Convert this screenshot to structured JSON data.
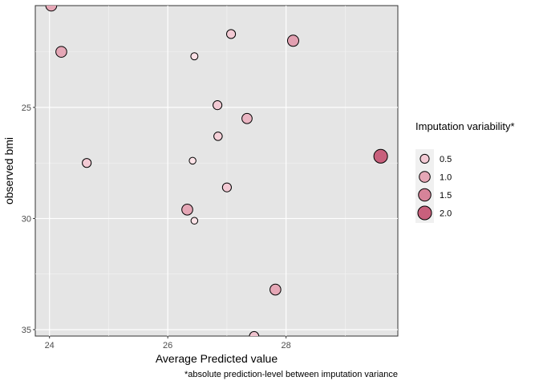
{
  "chart_data": {
    "type": "scatter",
    "title": "",
    "xlabel": "Average Predicted value",
    "ylabel": "observed bmi",
    "caption": "*absolute prediction-level between imputation variance",
    "xlim": [
      23.76,
      29.89
    ],
    "ylim": [
      35.29,
      20.42
    ],
    "y_reversed": true,
    "x_ticks": [
      24,
      26,
      28
    ],
    "x_minor": [
      25,
      27,
      29
    ],
    "y_ticks": [
      25,
      30,
      35
    ],
    "y_minor": [
      22.5,
      27.5,
      32.5
    ],
    "grid": true,
    "legend": {
      "title": "Imputation variability*",
      "placement": "right",
      "entries": [
        {
          "label": "0.5",
          "value": 0.5
        },
        {
          "label": "1.0",
          "value": 1.0
        },
        {
          "label": "1.5",
          "value": 1.5
        },
        {
          "label": "2.0",
          "value": 2.0
        }
      ]
    },
    "points": [
      {
        "x": 24.03,
        "y": 20.42,
        "v": 1.0
      },
      {
        "x": 24.2,
        "y": 22.5,
        "v": 1.0
      },
      {
        "x": 27.07,
        "y": 21.7,
        "v": 0.5
      },
      {
        "x": 26.45,
        "y": 22.7,
        "v": 0.2
      },
      {
        "x": 28.12,
        "y": 22.0,
        "v": 1.1
      },
      {
        "x": 26.84,
        "y": 24.9,
        "v": 0.5
      },
      {
        "x": 27.34,
        "y": 25.5,
        "v": 0.8
      },
      {
        "x": 26.85,
        "y": 26.3,
        "v": 0.4
      },
      {
        "x": 24.63,
        "y": 27.5,
        "v": 0.5
      },
      {
        "x": 26.42,
        "y": 27.4,
        "v": 0.15
      },
      {
        "x": 29.6,
        "y": 27.2,
        "v": 2.0
      },
      {
        "x": 27.0,
        "y": 28.6,
        "v": 0.5
      },
      {
        "x": 26.33,
        "y": 29.6,
        "v": 1.0
      },
      {
        "x": 26.45,
        "y": 30.1,
        "v": 0.15
      },
      {
        "x": 27.82,
        "y": 33.2,
        "v": 1.0
      },
      {
        "x": 27.46,
        "y": 35.3,
        "v": 0.6
      }
    ],
    "colors": {
      "low": "#fde3e8",
      "high": "#c8607c",
      "panel": "#e5e5e5",
      "grid": "#ffffff"
    }
  }
}
